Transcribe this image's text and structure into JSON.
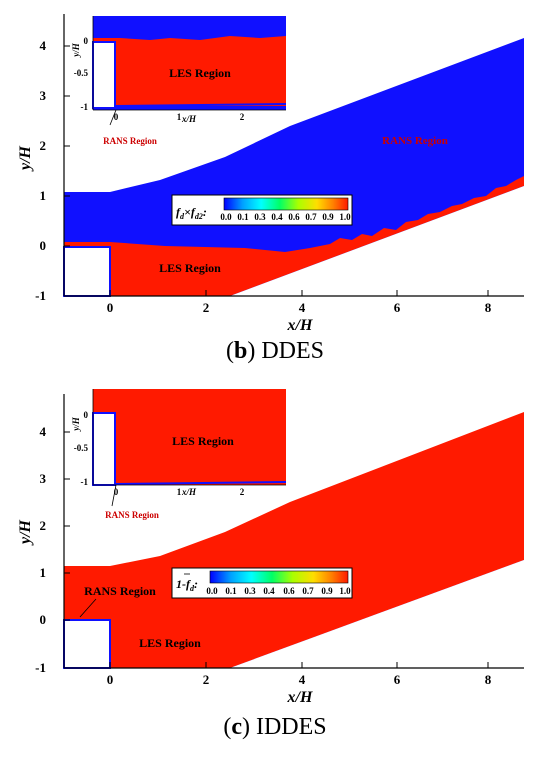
{
  "panels": [
    {
      "id": "b",
      "caption_letter": "b",
      "caption_text": "DDES",
      "legend_label_main": "f",
      "legend_label_sub1": "d",
      "legend_label_mid": "×f",
      "legend_label_sub2": "d2",
      "legend_label_end": ":",
      "ylabel": "y/H",
      "xlabel": "x/H",
      "inset_ylabel": "y/H",
      "inset_xlabel": "x/H",
      "les_label": "LES Region",
      "inset_les_label": "LES Region",
      "rans_label_red": "RANS Region",
      "inset_rans_label": "RANS Region"
    },
    {
      "id": "c",
      "caption_letter": "c",
      "caption_text": "IDDES",
      "legend_label_main": "1-",
      "legend_label_f": "f",
      "legend_label_sub1": "d",
      "legend_label_end": ":",
      "ylabel": "y/H",
      "xlabel": "x/H",
      "inset_ylabel": "y/H",
      "inset_xlabel": "x/H",
      "les_label": "LES Region",
      "inset_les_label": "LES Region",
      "rans_label_black": "RANS Region",
      "inset_rans_label": "RANS Region"
    }
  ],
  "colorbar_ticks": [
    "0.0",
    "0.1",
    "0.3",
    "0.4",
    "0.6",
    "0.7",
    "0.9",
    "1.0"
  ],
  "main_xticks": [
    "0",
    "2",
    "4",
    "6",
    "8"
  ],
  "main_yticks": [
    "-1",
    "0",
    "1",
    "2",
    "3",
    "4"
  ],
  "inset_xticks": [
    "0",
    "1",
    "2"
  ],
  "inset_yticks": [
    "-1",
    "-0.5",
    "0"
  ],
  "colors": {
    "red": "#ff1a00",
    "blue": "#1010ff",
    "white": "#ffffff"
  }
}
